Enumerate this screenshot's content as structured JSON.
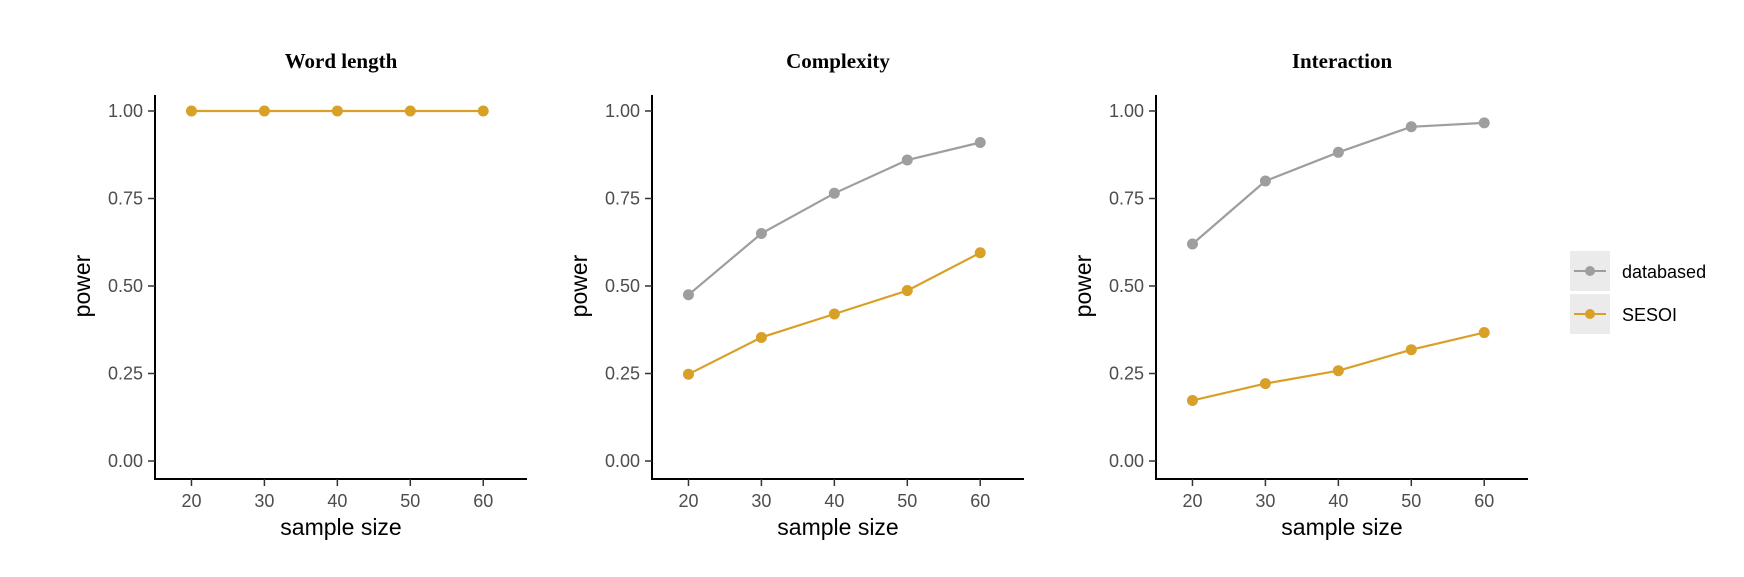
{
  "chart_data": [
    {
      "type": "line",
      "title": "Word length",
      "xlabel": "sample size",
      "ylabel": "power",
      "x": [
        20,
        30,
        40,
        50,
        60
      ],
      "xticks": [
        "20",
        "30",
        "40",
        "50",
        "60"
      ],
      "yticks": [
        "0.00",
        "0.25",
        "0.50",
        "0.75",
        "1.00"
      ],
      "xlim": [
        15,
        66
      ],
      "ylim": [
        0,
        1
      ],
      "grid": false,
      "series": [
        {
          "name": "SESOI",
          "values": [
            1.0,
            1.0,
            1.0,
            1.0,
            1.0
          ]
        }
      ]
    },
    {
      "type": "line",
      "title": "Complexity",
      "xlabel": "sample size",
      "ylabel": "power",
      "x": [
        20,
        30,
        40,
        50,
        60
      ],
      "xticks": [
        "20",
        "30",
        "40",
        "50",
        "60"
      ],
      "yticks": [
        "0.00",
        "0.25",
        "0.50",
        "0.75",
        "1.00"
      ],
      "xlim": [
        15,
        66
      ],
      "ylim": [
        0,
        1
      ],
      "grid": false,
      "series": [
        {
          "name": "databased",
          "values": [
            0.475,
            0.65,
            0.765,
            0.86,
            0.91
          ]
        },
        {
          "name": "SESOI",
          "values": [
            0.248,
            0.353,
            0.42,
            0.487,
            0.595
          ]
        }
      ]
    },
    {
      "type": "line",
      "title": "Interaction",
      "xlabel": "sample size",
      "ylabel": "power",
      "x": [
        20,
        30,
        40,
        50,
        60
      ],
      "xticks": [
        "20",
        "30",
        "40",
        "50",
        "60"
      ],
      "yticks": [
        "0.00",
        "0.25",
        "0.50",
        "0.75",
        "1.00"
      ],
      "xlim": [
        15,
        66
      ],
      "ylim": [
        0,
        1
      ],
      "grid": false,
      "series": [
        {
          "name": "databased",
          "values": [
            0.62,
            0.8,
            0.882,
            0.955,
            0.966
          ]
        },
        {
          "name": "SESOI",
          "values": [
            0.173,
            0.221,
            0.258,
            0.318,
            0.367
          ]
        }
      ]
    }
  ],
  "legend": {
    "position": "right",
    "items": [
      {
        "label": "databased",
        "color": "#9e9e9e"
      },
      {
        "label": "SESOI",
        "color": "#d9a028"
      }
    ]
  },
  "colors": {
    "databased": "#9e9e9e",
    "SESOI": "#d9a028"
  }
}
